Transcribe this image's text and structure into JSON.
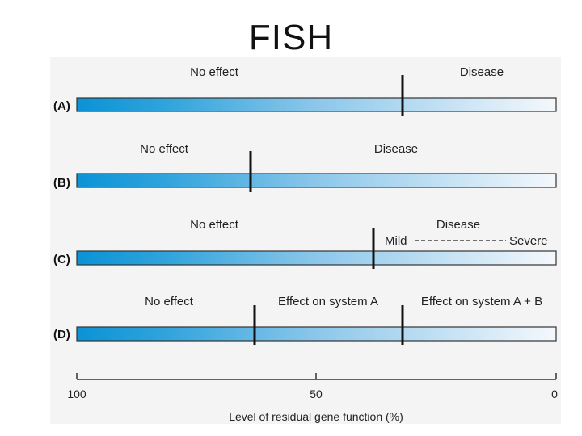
{
  "title": "FISH",
  "rows": [
    {
      "id": "A",
      "label": "(A)",
      "regions": [
        "No effect",
        "Disease"
      ]
    },
    {
      "id": "B",
      "label": "(B)",
      "regions": [
        "No effect",
        "Disease"
      ]
    },
    {
      "id": "C",
      "label": "(C)",
      "regions": [
        "No effect",
        "Disease"
      ],
      "scale": {
        "mild": "Mild",
        "severe": "Severe"
      }
    },
    {
      "id": "D",
      "label": "(D)",
      "regions": [
        "No effect",
        "Effect on system A",
        "Effect on system A + B"
      ]
    }
  ],
  "axis": {
    "ticks": [
      "100",
      "50",
      "0"
    ],
    "label": "Level of residual gene function (%)"
  },
  "colors": {
    "bar_dark": "#0a93d6",
    "bar_light": "#f4f8fc",
    "title": "#111111"
  }
}
